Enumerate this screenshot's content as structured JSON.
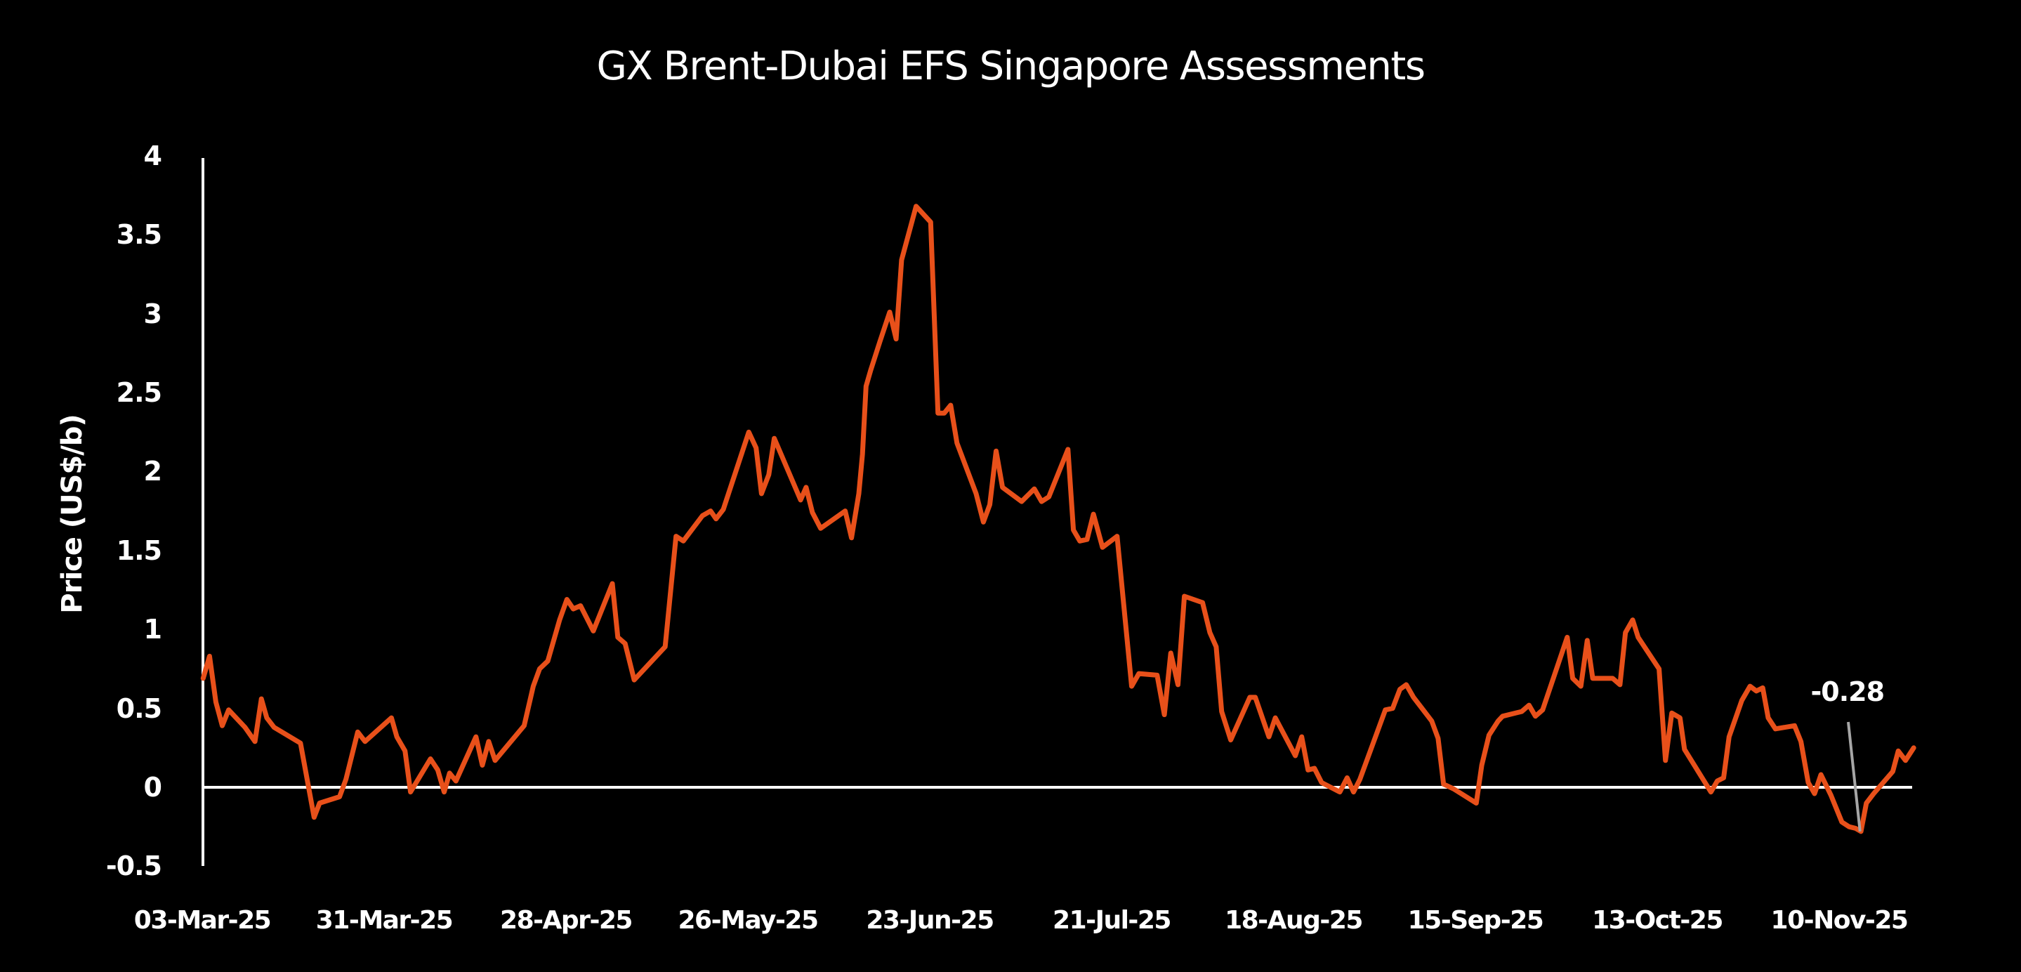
{
  "chart_data": {
    "type": "line",
    "title": "GX Brent-Dubai EFS Singapore Assessments",
    "xlabel": "",
    "ylabel": "Price (US$/b)",
    "ylim": [
      -0.5,
      4
    ],
    "yticks": [
      "4",
      "3.5",
      "3",
      "2.5",
      "2",
      "1.5",
      "1",
      "0.5",
      "0",
      "-0.5"
    ],
    "ytick_values": [
      4,
      3.5,
      3,
      2.5,
      2,
      1.5,
      1,
      0.5,
      0,
      -0.5
    ],
    "xticks": [
      "03-Mar-25",
      "31-Mar-25",
      "28-Apr-25",
      "26-May-25",
      "23-Jun-25",
      "21-Jul-25",
      "18-Aug-25",
      "15-Sep-25",
      "13-Oct-25",
      "10-Nov-25"
    ],
    "x_unit": "business days since 03-Mar-25 (tick every 20)",
    "grid": false,
    "legend": null,
    "colors": {
      "series": "#E8501A",
      "axis": "#FFFFFF",
      "background": "#000000",
      "annotation_line": "#A6A6A6"
    },
    "annotation": {
      "text": "-0.28",
      "x": 182.3,
      "y": -0.28
    },
    "series": [
      {
        "name": "GX Brent-Dubai EFS Singapore",
        "points": [
          [
            0.1,
            0.69
          ],
          [
            0.8,
            0.83
          ],
          [
            1.5,
            0.54
          ],
          [
            2.2,
            0.39
          ],
          [
            2.9,
            0.49
          ],
          [
            4.7,
            0.38
          ],
          [
            5.8,
            0.29
          ],
          [
            6.5,
            0.56
          ],
          [
            7.1,
            0.44
          ],
          [
            7.9,
            0.38
          ],
          [
            10.8,
            0.28
          ],
          [
            12.3,
            -0.19
          ],
          [
            12.9,
            -0.1
          ],
          [
            15.1,
            -0.06
          ],
          [
            15.8,
            0.05
          ],
          [
            17.1,
            0.35
          ],
          [
            17.9,
            0.29
          ],
          [
            20.8,
            0.44
          ],
          [
            21.4,
            0.32
          ],
          [
            22.3,
            0.23
          ],
          [
            22.9,
            -0.03
          ],
          [
            25.1,
            0.18
          ],
          [
            25.9,
            0.11
          ],
          [
            26.6,
            -0.03
          ],
          [
            27.2,
            0.09
          ],
          [
            27.9,
            0.04
          ],
          [
            30.1,
            0.32
          ],
          [
            30.8,
            0.14
          ],
          [
            31.5,
            0.29
          ],
          [
            32.2,
            0.17
          ],
          [
            35.4,
            0.39
          ],
          [
            36.4,
            0.64
          ],
          [
            37.1,
            0.75
          ],
          [
            38.0,
            0.8
          ],
          [
            39.3,
            1.06
          ],
          [
            40.1,
            1.19
          ],
          [
            40.8,
            1.13
          ],
          [
            41.6,
            1.15
          ],
          [
            43.0,
            0.99
          ],
          [
            45.1,
            1.29
          ],
          [
            45.7,
            0.95
          ],
          [
            46.5,
            0.91
          ],
          [
            47.5,
            0.68
          ],
          [
            50.9,
            0.89
          ],
          [
            52.1,
            1.59
          ],
          [
            52.9,
            1.56
          ],
          [
            55.0,
            1.72
          ],
          [
            55.9,
            1.75
          ],
          [
            56.5,
            1.7
          ],
          [
            57.3,
            1.76
          ],
          [
            60.1,
            2.25
          ],
          [
            60.9,
            2.15
          ],
          [
            61.5,
            1.86
          ],
          [
            62.3,
            1.98
          ],
          [
            62.9,
            2.21
          ],
          [
            65.8,
            1.82
          ],
          [
            66.4,
            1.9
          ],
          [
            67.1,
            1.74
          ],
          [
            68.0,
            1.64
          ],
          [
            70.7,
            1.75
          ],
          [
            71.4,
            1.58
          ],
          [
            72.2,
            1.86
          ],
          [
            72.6,
            2.11
          ],
          [
            73.0,
            2.54
          ],
          [
            73.5,
            2.64
          ],
          [
            74.5,
            2.82
          ],
          [
            75.6,
            3.01
          ],
          [
            76.3,
            2.84
          ],
          [
            76.9,
            3.34
          ],
          [
            78.5,
            3.68
          ],
          [
            80.1,
            3.58
          ],
          [
            80.9,
            2.37
          ],
          [
            81.6,
            2.37
          ],
          [
            82.3,
            2.42
          ],
          [
            83.0,
            2.18
          ],
          [
            85.1,
            1.86
          ],
          [
            85.9,
            1.68
          ],
          [
            86.6,
            1.79
          ],
          [
            87.3,
            2.13
          ],
          [
            88.0,
            1.9
          ],
          [
            90.1,
            1.81
          ],
          [
            91.5,
            1.89
          ],
          [
            92.3,
            1.81
          ],
          [
            93.1,
            1.84
          ],
          [
            95.2,
            2.14
          ],
          [
            95.8,
            1.63
          ],
          [
            96.5,
            1.56
          ],
          [
            97.3,
            1.57
          ],
          [
            98.0,
            1.73
          ],
          [
            99.0,
            1.52
          ],
          [
            100.6,
            1.59
          ],
          [
            102.2,
            0.64
          ],
          [
            103.0,
            0.72
          ],
          [
            105.0,
            0.71
          ],
          [
            105.8,
            0.46
          ],
          [
            106.5,
            0.85
          ],
          [
            107.3,
            0.65
          ],
          [
            108.0,
            1.21
          ],
          [
            110.0,
            1.17
          ],
          [
            110.8,
            0.98
          ],
          [
            111.5,
            0.89
          ],
          [
            112.1,
            0.48
          ],
          [
            113.1,
            0.3
          ],
          [
            115.2,
            0.57
          ],
          [
            115.8,
            0.57
          ],
          [
            117.3,
            0.32
          ],
          [
            118.0,
            0.44
          ],
          [
            120.2,
            0.2
          ],
          [
            120.9,
            0.32
          ],
          [
            121.6,
            0.11
          ],
          [
            122.3,
            0.12
          ],
          [
            123.1,
            0.03
          ],
          [
            125.1,
            -0.03
          ],
          [
            125.9,
            0.06
          ],
          [
            126.6,
            -0.03
          ],
          [
            127.3,
            0.05
          ],
          [
            130.1,
            0.49
          ],
          [
            130.9,
            0.5
          ],
          [
            131.7,
            0.62
          ],
          [
            132.4,
            0.65
          ],
          [
            133.2,
            0.57
          ],
          [
            135.2,
            0.42
          ],
          [
            135.9,
            0.31
          ],
          [
            136.5,
            0.02
          ],
          [
            137.6,
            -0.01
          ],
          [
            140.1,
            -0.1
          ],
          [
            140.7,
            0.14
          ],
          [
            141.5,
            0.33
          ],
          [
            142.5,
            0.42
          ],
          [
            143.0,
            0.45
          ],
          [
            145.1,
            0.48
          ],
          [
            145.9,
            0.52
          ],
          [
            146.6,
            0.45
          ],
          [
            147.4,
            0.49
          ],
          [
            150.1,
            0.95
          ],
          [
            150.7,
            0.69
          ],
          [
            151.6,
            0.64
          ],
          [
            152.3,
            0.93
          ],
          [
            152.9,
            0.69
          ],
          [
            155.1,
            0.69
          ],
          [
            155.9,
            0.65
          ],
          [
            156.5,
            0.98
          ],
          [
            157.3,
            1.06
          ],
          [
            157.9,
            0.95
          ],
          [
            160.2,
            0.75
          ],
          [
            160.9,
            0.17
          ],
          [
            161.6,
            0.47
          ],
          [
            162.5,
            0.44
          ],
          [
            163.0,
            0.24
          ],
          [
            165.9,
            -0.03
          ],
          [
            166.6,
            0.04
          ],
          [
            167.3,
            0.06
          ],
          [
            167.9,
            0.32
          ],
          [
            169.3,
            0.55
          ],
          [
            170.2,
            0.64
          ],
          [
            170.9,
            0.61
          ],
          [
            171.6,
            0.63
          ],
          [
            172.2,
            0.44
          ],
          [
            173.0,
            0.37
          ],
          [
            175.1,
            0.39
          ],
          [
            175.8,
            0.29
          ],
          [
            176.6,
            0.03
          ],
          [
            177.3,
            -0.04
          ],
          [
            178.0,
            0.08
          ],
          [
            179.1,
            -0.05
          ],
          [
            180.3,
            -0.22
          ],
          [
            181.1,
            -0.25
          ],
          [
            181.8,
            -0.26
          ],
          [
            182.4,
            -0.28
          ],
          [
            183.0,
            -0.1
          ],
          [
            183.8,
            -0.04
          ],
          [
            185.9,
            0.1
          ],
          [
            186.5,
            0.23
          ],
          [
            187.3,
            0.17
          ],
          [
            188.2,
            0.25
          ]
        ]
      }
    ]
  }
}
